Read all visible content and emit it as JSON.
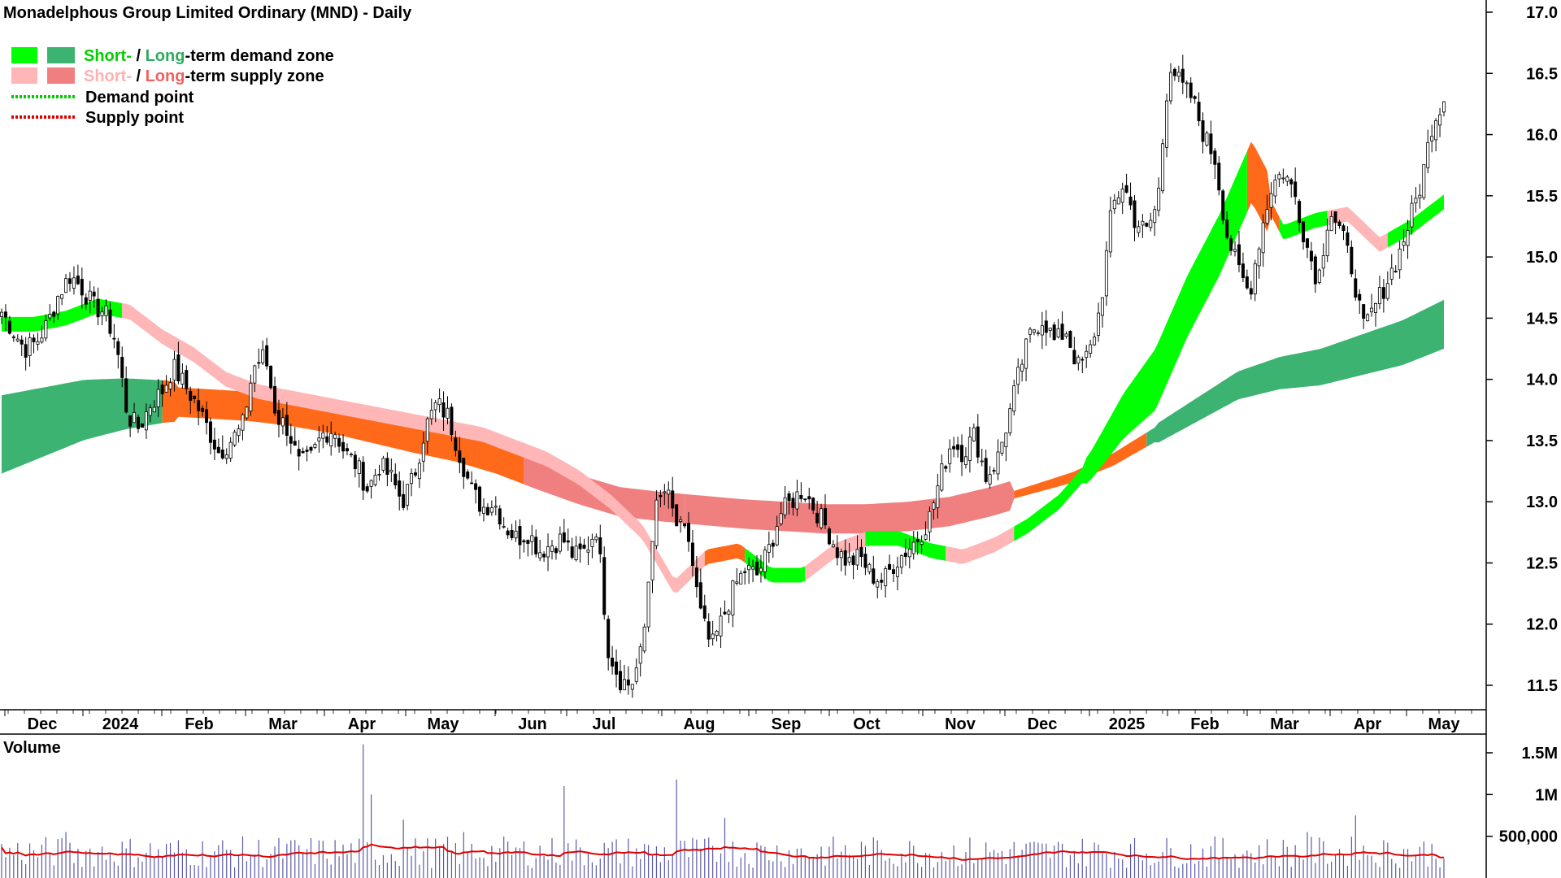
{
  "title": "Monadelphous Group Limited Ordinary (MND) - Daily",
  "legend": {
    "demand_short": "Short-",
    "demand_sep": " / ",
    "demand_long": "Long",
    "demand_rest": "-term demand zone",
    "supply_short": "Short-",
    "supply_sep": " / ",
    "supply_long": "Long",
    "supply_rest": "-term supply zone",
    "demand_point": "Demand point",
    "supply_point": "Supply point"
  },
  "volume_label": "Volume",
  "colors": {
    "short_demand": "#00ff00",
    "long_demand": "#3cb371",
    "short_supply": "#ffb6b6",
    "long_supply": "#f08080",
    "orange_zone": "#ff6a1a",
    "demand_point": "#00cc00",
    "supply_point": "#e00000",
    "volume_bar": "#5a5aaa",
    "volume_avg": "#e00000",
    "volume_label": "#6a6aaa"
  },
  "chart_data": {
    "type": "candlestick",
    "price_axis": {
      "ticks": [
        "17.0",
        "16.5",
        "16.0",
        "15.5",
        "15.0",
        "14.5",
        "14.0",
        "13.5",
        "13.0",
        "12.5",
        "12.0",
        "11.5"
      ],
      "range": [
        11.3,
        17.1
      ]
    },
    "x_axis": {
      "labels": [
        "Dec",
        "2024",
        "Feb",
        "Mar",
        "Apr",
        "May",
        "Jun",
        "Jul",
        "Aug",
        "Sep",
        "Oct",
        "Nov",
        "Dec",
        "2025",
        "Feb",
        "Mar",
        "Apr",
        "May"
      ]
    },
    "volume_axis": {
      "ticks": [
        "1.5M",
        "1M",
        "500,000"
      ],
      "range": [
        0,
        1700000
      ]
    },
    "price_path": [
      [
        14.55,
        14.4,
        14.25,
        14.3,
        14.45,
        14.7,
        14.85,
        14.75,
        14.6,
        14.55,
        14.3,
        13.7,
        13.6,
        13.8,
        13.9,
        14.1,
        13.95,
        13.8,
        13.6,
        13.4,
        13.5,
        13.6,
        14.1,
        14.2,
        13.7,
        13.6,
        13.3,
        13.35,
        13.55,
        13.6,
        13.4,
        13.3,
        13.1,
        13.3,
        13.2,
        13.0,
        13.2,
        13.6,
        13.8,
        13.7,
        13.4,
        13.1,
        12.95,
        13.0,
        12.8,
        12.7,
        12.75,
        12.6,
        12.65,
        12.7,
        12.55,
        12.6,
        12.8,
        11.8,
        11.55,
        11.5,
        11.8,
        12.9,
        13.1,
        12.8,
        12.7,
        12.1,
        11.8,
        12.05,
        12.3,
        12.45,
        12.4,
        12.6,
        12.9,
        13.0,
        13.1,
        12.95,
        12.8,
        12.6,
        12.5,
        12.55,
        12.4,
        12.35,
        12.5,
        12.6,
        12.7,
        12.85,
        13.2,
        13.5,
        13.4,
        13.55,
        13.2,
        13.35,
        13.7,
        14.1,
        14.4,
        14.5,
        14.3,
        14.4,
        14.1,
        14.2,
        14.6,
        15.4,
        15.6,
        15.3,
        15.2,
        15.45,
        16.6,
        16.4,
        16.3,
        16.0,
        15.8,
        15.2,
        14.9,
        14.7,
        15.2,
        15.6,
        15.7,
        15.5,
        15.1,
        14.8,
        15.4,
        15.2,
        14.9,
        14.4,
        14.6,
        14.8,
        15.0,
        15.3,
        15.6,
        16.1,
        16.3
      ]
    ],
    "short_term_band": [
      [
        14.45,
        14.45,
        14.5,
        14.6,
        14.55,
        14.35,
        14.2,
        14.0,
        13.9,
        13.85,
        13.8,
        13.75,
        13.7,
        13.65,
        13.6,
        13.55,
        13.45,
        13.35,
        13.2,
        13.0,
        12.75,
        12.3,
        12.55,
        12.6,
        12.4,
        12.4,
        12.6,
        12.7,
        12.7,
        12.6,
        12.55,
        12.65,
        12.8,
        13.0,
        13.3,
        13.7,
        14.0,
        14.6,
        15.1,
        15.7,
        15.2,
        15.3,
        15.35,
        15.1,
        15.25,
        15.45
      ]
    ],
    "long_term_band": [
      [
        13.55,
        13.65,
        13.75,
        13.8,
        13.82,
        13.8,
        13.78,
        13.74,
        13.68,
        13.6,
        13.52,
        13.45,
        13.35,
        13.22,
        13.1,
        13.0,
        12.96,
        12.93,
        12.9,
        12.88,
        12.86,
        12.86,
        12.88,
        12.92,
        13.0,
        13.1,
        13.2,
        13.35,
        13.55,
        13.75,
        13.95,
        14.05,
        14.1,
        14.2,
        14.3,
        14.45
      ]
    ],
    "volume_ticks_note": "",
    "series": []
  }
}
